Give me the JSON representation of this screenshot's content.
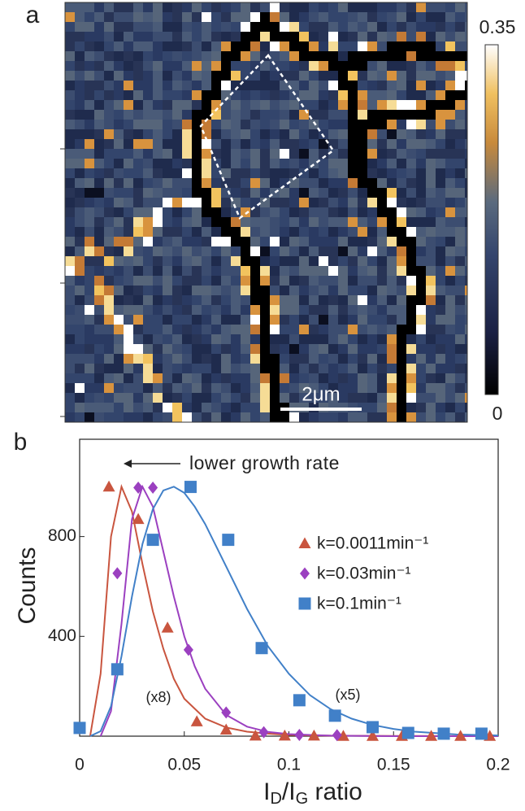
{
  "panel_a": {
    "label": "a",
    "scale_bar": "2μm",
    "colorbar": {
      "lim": [
        0,
        0.35
      ],
      "ticks": [
        0,
        0.35
      ]
    }
  },
  "chart_data": {
    "type": "scatter",
    "label": "b",
    "y_label": "Counts",
    "x_label": [
      {
        "text": "I"
      },
      {
        "text": "D",
        "sub": true
      },
      {
        "text": "/I"
      },
      {
        "text": "G",
        "sub": true
      },
      {
        "text": " ratio"
      }
    ],
    "xlim": [
      0,
      0.2
    ],
    "xticks": [
      0,
      0.05,
      0.1,
      0.15,
      0.2
    ],
    "ylim": [
      0,
      1190
    ],
    "yticks": [
      400,
      800
    ],
    "annotations": [
      "lower growth rate",
      "(x8)",
      "(x5)"
    ],
    "series": [
      {
        "name": "k=0.0011min⁻¹",
        "color": "#c9553f",
        "marker": "triangle",
        "x": [
          0.014,
          0.028,
          0.042,
          0.056,
          0.07,
          0.084,
          0.098,
          0.112,
          0.126,
          0.14,
          0.154,
          0.168,
          0.182,
          0.196
        ],
        "values": [
          1000,
          870,
          435,
          59,
          26,
          2,
          2,
          2,
          1,
          1,
          1,
          1,
          1,
          1
        ]
      },
      {
        "name": "k=0.03min⁻¹",
        "color": "#9b40c0",
        "marker": "diamond",
        "x": [
          0.018,
          0.028,
          0.035,
          0.052,
          0.07,
          0.088,
          0.105,
          0.123
        ],
        "values": [
          653,
          996,
          996,
          346,
          95,
          16,
          5,
          4
        ]
      },
      {
        "name": "k=0.1min⁻¹",
        "color": "#4180c8",
        "marker": "square",
        "x": [
          0,
          0.018,
          0.035,
          0.053,
          0.071,
          0.087,
          0.105,
          0.122,
          0.14,
          0.157,
          0.174,
          0.192
        ],
        "values": [
          33,
          268,
          787,
          999,
          787,
          353,
          144,
          82,
          36,
          13,
          10,
          10
        ]
      }
    ],
    "fits": [
      {
        "color": "#c9553f",
        "x": [
          0.005,
          0.01,
          0.015,
          0.02,
          0.025,
          0.03,
          0.035,
          0.04,
          0.045,
          0.05,
          0.06,
          0.07,
          0.08,
          0.09,
          0.1,
          0.12,
          0.15,
          0.2
        ],
        "values": [
          0,
          250,
          800,
          1000,
          900,
          690,
          500,
          350,
          230,
          150,
          70,
          35,
          18,
          10,
          5,
          2,
          1,
          0
        ]
      },
      {
        "color": "#9b40c0",
        "x": [
          0.01,
          0.015,
          0.02,
          0.025,
          0.03,
          0.035,
          0.04,
          0.045,
          0.05,
          0.055,
          0.06,
          0.07,
          0.08,
          0.09,
          0.1,
          0.12,
          0.15,
          0.2
        ],
        "values": [
          0,
          100,
          450,
          870,
          1000,
          920,
          740,
          560,
          400,
          280,
          190,
          85,
          38,
          17,
          8,
          2,
          0,
          0
        ]
      },
      {
        "color": "#4180c8",
        "x": [
          0.005,
          0.01,
          0.015,
          0.02,
          0.025,
          0.03,
          0.035,
          0.04,
          0.045,
          0.05,
          0.055,
          0.06,
          0.07,
          0.08,
          0.09,
          0.1,
          0.11,
          0.12,
          0.13,
          0.14,
          0.15,
          0.16,
          0.18,
          0.2
        ],
        "values": [
          0,
          20,
          120,
          320,
          560,
          770,
          910,
          985,
          1000,
          975,
          920,
          850,
          680,
          510,
          360,
          250,
          165,
          108,
          70,
          45,
          29,
          18,
          7,
          3
        ]
      }
    ]
  }
}
